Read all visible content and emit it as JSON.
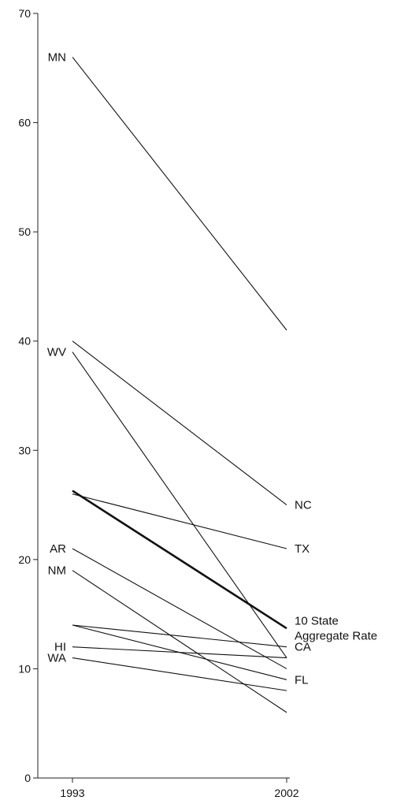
{
  "chart_data": {
    "type": "line",
    "title": "",
    "xlabel": "",
    "ylabel": "",
    "categories": [
      "1993",
      "2002"
    ],
    "ylim": [
      0,
      70
    ],
    "yticks": [
      0,
      10,
      20,
      30,
      40,
      50,
      60,
      70
    ],
    "grid": false,
    "series": [
      {
        "id": "mn",
        "name": "MN",
        "values": [
          66,
          41
        ],
        "label_side": "left"
      },
      {
        "id": "wv",
        "name": "WV",
        "values": [
          39,
          11
        ],
        "label_side": "left"
      },
      {
        "id": "nc",
        "name": "NC",
        "values": [
          40,
          25
        ],
        "label_side": "right"
      },
      {
        "id": "tx",
        "name": "TX",
        "values": [
          26,
          21
        ],
        "label_side": "right"
      },
      {
        "id": "agg",
        "name": "10 State Aggregate Rate",
        "label_lines": [
          "10 State",
          "Aggregate Rate"
        ],
        "values": [
          26.3,
          13.7
        ],
        "label_side": "right",
        "bold": true
      },
      {
        "id": "ar",
        "name": "AR",
        "values": [
          21,
          10
        ],
        "label_side": "left"
      },
      {
        "id": "nm",
        "name": "NM",
        "values": [
          19,
          6
        ],
        "label_side": "left"
      },
      {
        "id": "ca",
        "name": "CA",
        "values": [
          14,
          12
        ],
        "label_side": "right"
      },
      {
        "id": "fl",
        "name": "FL",
        "values": [
          14,
          9
        ],
        "label_side": "right"
      },
      {
        "id": "hi",
        "name": "HI",
        "values": [
          12,
          11
        ],
        "label_side": "left"
      },
      {
        "id": "wa",
        "name": "WA",
        "values": [
          11,
          8
        ],
        "label_side": "left"
      }
    ]
  }
}
